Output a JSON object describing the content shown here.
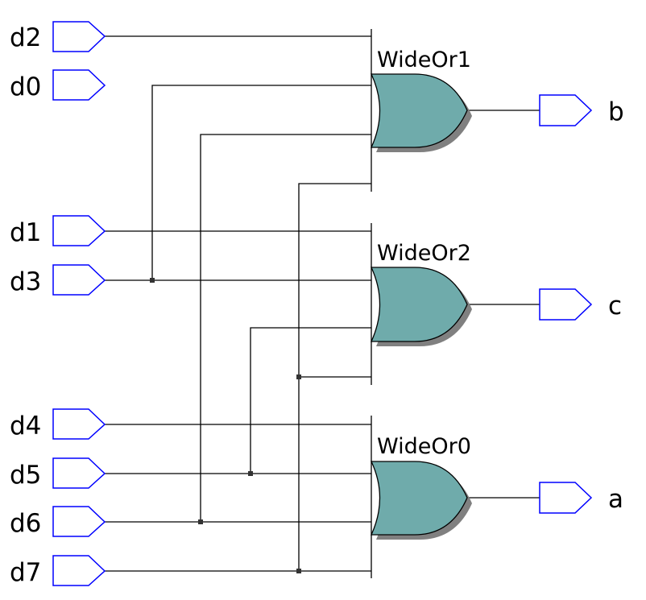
{
  "inputs": [
    "d2",
    "d0",
    "d1",
    "d3",
    "d4",
    "d5",
    "d6",
    "d7"
  ],
  "gates": [
    "WideOr1",
    "WideOr2",
    "WideOr0"
  ],
  "outputs": [
    "b",
    "c",
    "a"
  ],
  "colors": {
    "port": "#0000ff",
    "wire": "#000000",
    "gate_fill": "#6fabab",
    "gate_shadow": "#808080",
    "junction": "#333333"
  }
}
